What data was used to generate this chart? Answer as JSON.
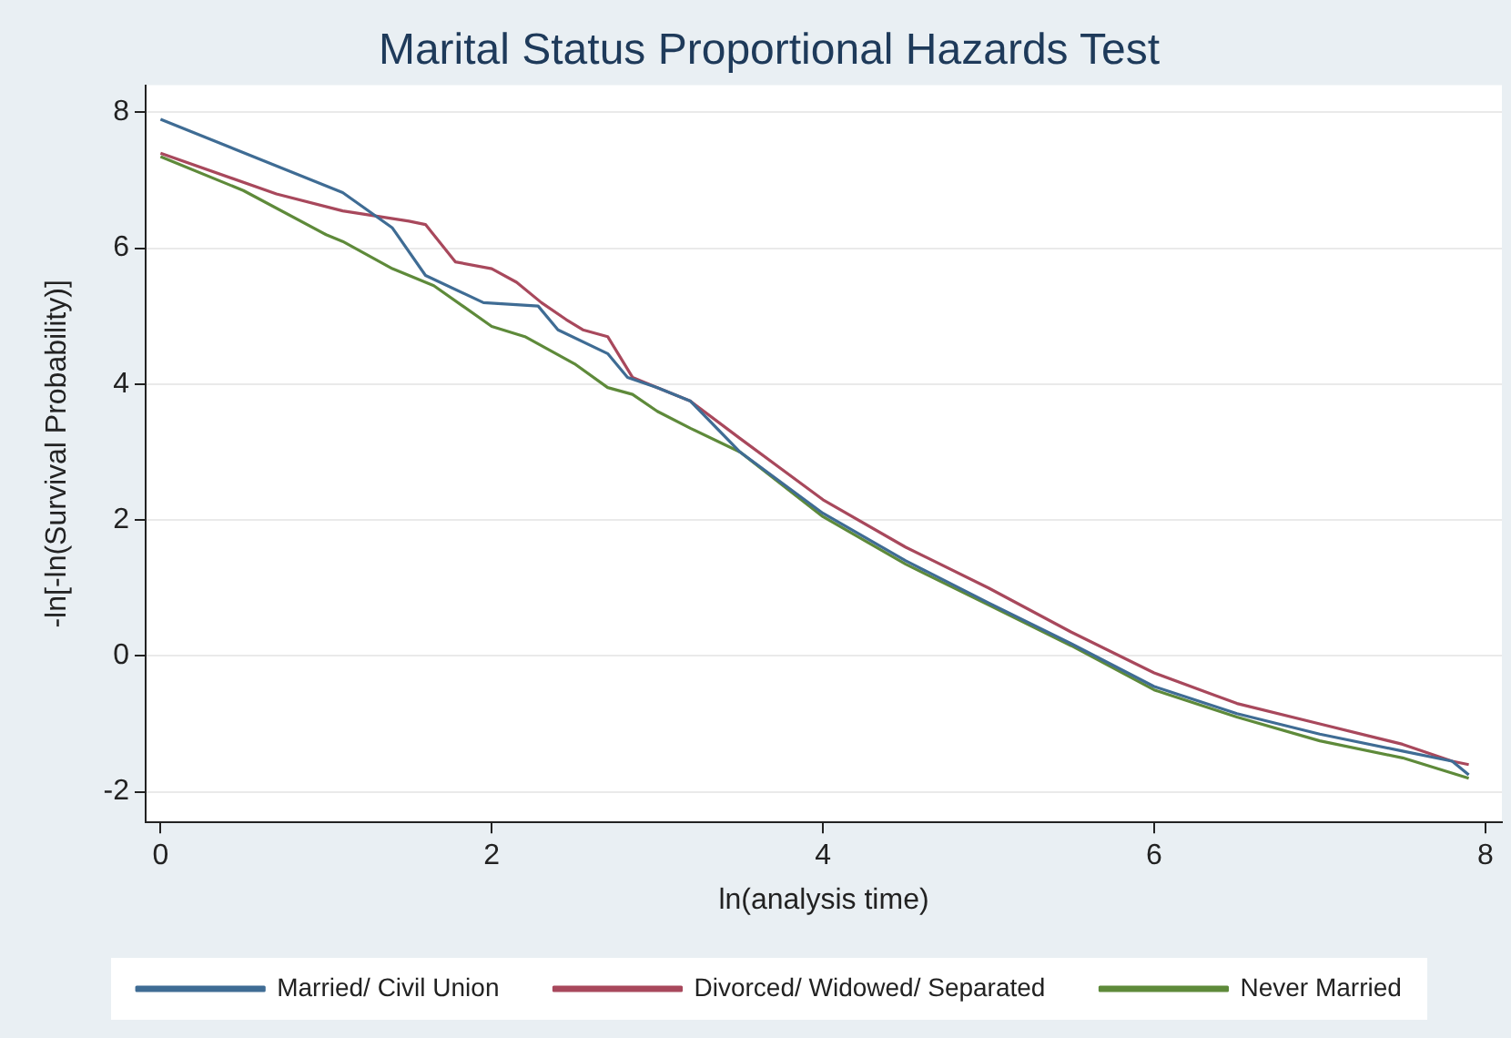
{
  "chart_data": {
    "type": "line",
    "title": "Marital Status Proportional Hazards Test",
    "xlabel": "ln(analysis time)",
    "ylabel": "-ln[-ln(Survival Probability)]",
    "xlim": [
      -0.09,
      8.1
    ],
    "ylim": [
      -2.45,
      8.4
    ],
    "xticks": [
      0,
      2,
      4,
      6,
      8
    ],
    "yticks": [
      -2,
      0,
      2,
      4,
      6,
      8
    ],
    "grid": "y",
    "legend": "bottom",
    "marker": "none",
    "line_style": "solid",
    "series": [
      {
        "name": "Married/ Civil Union",
        "color": "#3f6c94",
        "x": [
          0,
          1.1,
          1.4,
          1.6,
          1.95,
          2.28,
          2.4,
          2.7,
          2.82,
          3.0,
          3.2,
          3.5,
          4,
          4.5,
          5,
          5.5,
          6,
          6.5,
          7,
          7.5,
          7.8,
          7.9
        ],
        "values": [
          7.9,
          6.82,
          6.3,
          5.6,
          5.2,
          5.15,
          4.8,
          4.45,
          4.1,
          3.95,
          3.75,
          3.0,
          2.1,
          1.4,
          0.78,
          0.18,
          -0.45,
          -0.85,
          -1.15,
          -1.4,
          -1.55,
          -1.75
        ]
      },
      {
        "name": "Divorced/ Widowed/ Separated",
        "color": "#a8485c",
        "x": [
          0,
          0.7,
          1.1,
          1.5,
          1.6,
          1.78,
          2.0,
          2.15,
          2.3,
          2.45,
          2.55,
          2.7,
          2.85,
          3.0,
          3.2,
          3.5,
          4,
          4.5,
          5,
          5.5,
          6,
          6.5,
          7,
          7.5,
          7.8,
          7.9
        ],
        "values": [
          7.4,
          6.8,
          6.55,
          6.4,
          6.35,
          5.8,
          5.7,
          5.5,
          5.2,
          4.95,
          4.8,
          4.7,
          4.1,
          3.95,
          3.75,
          3.2,
          2.3,
          1.6,
          1.0,
          0.35,
          -0.25,
          -0.7,
          -1.0,
          -1.3,
          -1.55,
          -1.6
        ]
      },
      {
        "name": "Never Married",
        "color": "#5e8a3a",
        "x": [
          0,
          0.5,
          1.0,
          1.1,
          1.4,
          1.65,
          2.0,
          2.2,
          2.5,
          2.7,
          2.85,
          3.0,
          3.2,
          3.5,
          4,
          4.5,
          5,
          5.5,
          6,
          6.5,
          7,
          7.5,
          7.9
        ],
        "values": [
          7.35,
          6.85,
          6.2,
          6.1,
          5.7,
          5.45,
          4.85,
          4.7,
          4.3,
          3.95,
          3.85,
          3.6,
          3.35,
          3.0,
          2.05,
          1.35,
          0.75,
          0.15,
          -0.5,
          -0.9,
          -1.25,
          -1.5,
          -1.8
        ]
      }
    ]
  }
}
